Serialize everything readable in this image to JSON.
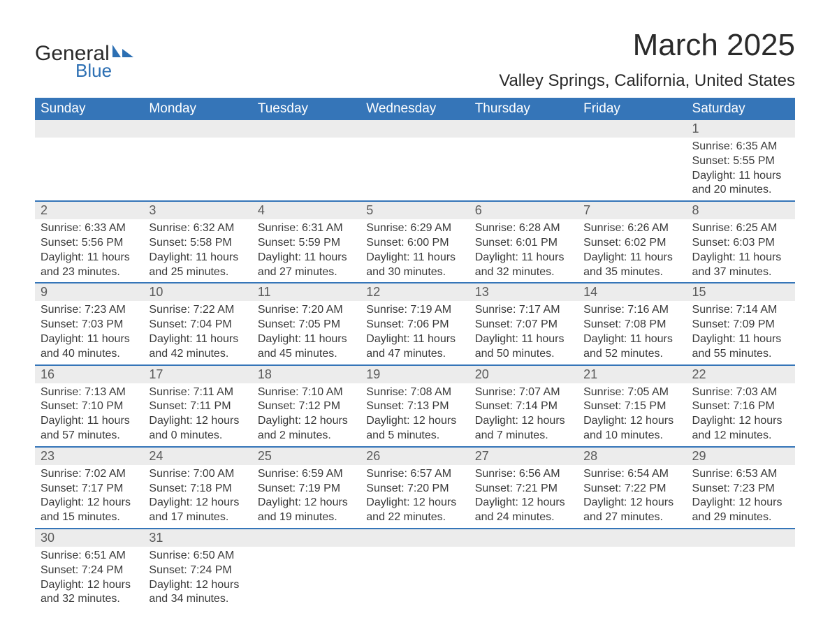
{
  "logo": {
    "line1": "General",
    "line2": "Blue",
    "accent_color": "#2c6fb3"
  },
  "title": "March 2025",
  "location": "Valley Springs, California, United States",
  "header_bg": "#3575b8",
  "header_fg": "#ffffff",
  "daynum_bg": "#ececec",
  "border_color": "#3575b8",
  "text_color": "#3a3a3a",
  "day_headers": [
    "Sunday",
    "Monday",
    "Tuesday",
    "Wednesday",
    "Thursday",
    "Friday",
    "Saturday"
  ],
  "weeks": [
    [
      null,
      null,
      null,
      null,
      null,
      null,
      {
        "n": "1",
        "sr": "Sunrise: 6:35 AM",
        "ss": "Sunset: 5:55 PM",
        "d1": "Daylight: 11 hours",
        "d2": "and 20 minutes."
      }
    ],
    [
      {
        "n": "2",
        "sr": "Sunrise: 6:33 AM",
        "ss": "Sunset: 5:56 PM",
        "d1": "Daylight: 11 hours",
        "d2": "and 23 minutes."
      },
      {
        "n": "3",
        "sr": "Sunrise: 6:32 AM",
        "ss": "Sunset: 5:58 PM",
        "d1": "Daylight: 11 hours",
        "d2": "and 25 minutes."
      },
      {
        "n": "4",
        "sr": "Sunrise: 6:31 AM",
        "ss": "Sunset: 5:59 PM",
        "d1": "Daylight: 11 hours",
        "d2": "and 27 minutes."
      },
      {
        "n": "5",
        "sr": "Sunrise: 6:29 AM",
        "ss": "Sunset: 6:00 PM",
        "d1": "Daylight: 11 hours",
        "d2": "and 30 minutes."
      },
      {
        "n": "6",
        "sr": "Sunrise: 6:28 AM",
        "ss": "Sunset: 6:01 PM",
        "d1": "Daylight: 11 hours",
        "d2": "and 32 minutes."
      },
      {
        "n": "7",
        "sr": "Sunrise: 6:26 AM",
        "ss": "Sunset: 6:02 PM",
        "d1": "Daylight: 11 hours",
        "d2": "and 35 minutes."
      },
      {
        "n": "8",
        "sr": "Sunrise: 6:25 AM",
        "ss": "Sunset: 6:03 PM",
        "d1": "Daylight: 11 hours",
        "d2": "and 37 minutes."
      }
    ],
    [
      {
        "n": "9",
        "sr": "Sunrise: 7:23 AM",
        "ss": "Sunset: 7:03 PM",
        "d1": "Daylight: 11 hours",
        "d2": "and 40 minutes."
      },
      {
        "n": "10",
        "sr": "Sunrise: 7:22 AM",
        "ss": "Sunset: 7:04 PM",
        "d1": "Daylight: 11 hours",
        "d2": "and 42 minutes."
      },
      {
        "n": "11",
        "sr": "Sunrise: 7:20 AM",
        "ss": "Sunset: 7:05 PM",
        "d1": "Daylight: 11 hours",
        "d2": "and 45 minutes."
      },
      {
        "n": "12",
        "sr": "Sunrise: 7:19 AM",
        "ss": "Sunset: 7:06 PM",
        "d1": "Daylight: 11 hours",
        "d2": "and 47 minutes."
      },
      {
        "n": "13",
        "sr": "Sunrise: 7:17 AM",
        "ss": "Sunset: 7:07 PM",
        "d1": "Daylight: 11 hours",
        "d2": "and 50 minutes."
      },
      {
        "n": "14",
        "sr": "Sunrise: 7:16 AM",
        "ss": "Sunset: 7:08 PM",
        "d1": "Daylight: 11 hours",
        "d2": "and 52 minutes."
      },
      {
        "n": "15",
        "sr": "Sunrise: 7:14 AM",
        "ss": "Sunset: 7:09 PM",
        "d1": "Daylight: 11 hours",
        "d2": "and 55 minutes."
      }
    ],
    [
      {
        "n": "16",
        "sr": "Sunrise: 7:13 AM",
        "ss": "Sunset: 7:10 PM",
        "d1": "Daylight: 11 hours",
        "d2": "and 57 minutes."
      },
      {
        "n": "17",
        "sr": "Sunrise: 7:11 AM",
        "ss": "Sunset: 7:11 PM",
        "d1": "Daylight: 12 hours",
        "d2": "and 0 minutes."
      },
      {
        "n": "18",
        "sr": "Sunrise: 7:10 AM",
        "ss": "Sunset: 7:12 PM",
        "d1": "Daylight: 12 hours",
        "d2": "and 2 minutes."
      },
      {
        "n": "19",
        "sr": "Sunrise: 7:08 AM",
        "ss": "Sunset: 7:13 PM",
        "d1": "Daylight: 12 hours",
        "d2": "and 5 minutes."
      },
      {
        "n": "20",
        "sr": "Sunrise: 7:07 AM",
        "ss": "Sunset: 7:14 PM",
        "d1": "Daylight: 12 hours",
        "d2": "and 7 minutes."
      },
      {
        "n": "21",
        "sr": "Sunrise: 7:05 AM",
        "ss": "Sunset: 7:15 PM",
        "d1": "Daylight: 12 hours",
        "d2": "and 10 minutes."
      },
      {
        "n": "22",
        "sr": "Sunrise: 7:03 AM",
        "ss": "Sunset: 7:16 PM",
        "d1": "Daylight: 12 hours",
        "d2": "and 12 minutes."
      }
    ],
    [
      {
        "n": "23",
        "sr": "Sunrise: 7:02 AM",
        "ss": "Sunset: 7:17 PM",
        "d1": "Daylight: 12 hours",
        "d2": "and 15 minutes."
      },
      {
        "n": "24",
        "sr": "Sunrise: 7:00 AM",
        "ss": "Sunset: 7:18 PM",
        "d1": "Daylight: 12 hours",
        "d2": "and 17 minutes."
      },
      {
        "n": "25",
        "sr": "Sunrise: 6:59 AM",
        "ss": "Sunset: 7:19 PM",
        "d1": "Daylight: 12 hours",
        "d2": "and 19 minutes."
      },
      {
        "n": "26",
        "sr": "Sunrise: 6:57 AM",
        "ss": "Sunset: 7:20 PM",
        "d1": "Daylight: 12 hours",
        "d2": "and 22 minutes."
      },
      {
        "n": "27",
        "sr": "Sunrise: 6:56 AM",
        "ss": "Sunset: 7:21 PM",
        "d1": "Daylight: 12 hours",
        "d2": "and 24 minutes."
      },
      {
        "n": "28",
        "sr": "Sunrise: 6:54 AM",
        "ss": "Sunset: 7:22 PM",
        "d1": "Daylight: 12 hours",
        "d2": "and 27 minutes."
      },
      {
        "n": "29",
        "sr": "Sunrise: 6:53 AM",
        "ss": "Sunset: 7:23 PM",
        "d1": "Daylight: 12 hours",
        "d2": "and 29 minutes."
      }
    ],
    [
      {
        "n": "30",
        "sr": "Sunrise: 6:51 AM",
        "ss": "Sunset: 7:24 PM",
        "d1": "Daylight: 12 hours",
        "d2": "and 32 minutes."
      },
      {
        "n": "31",
        "sr": "Sunrise: 6:50 AM",
        "ss": "Sunset: 7:24 PM",
        "d1": "Daylight: 12 hours",
        "d2": "and 34 minutes."
      },
      null,
      null,
      null,
      null,
      null
    ]
  ]
}
